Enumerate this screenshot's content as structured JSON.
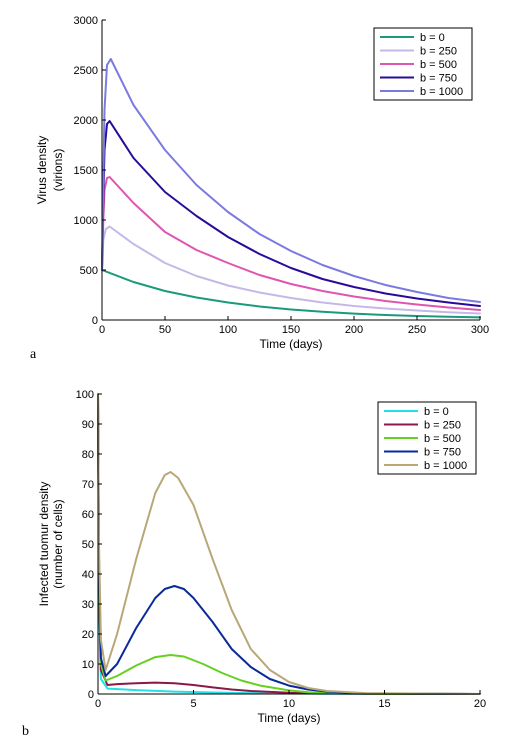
{
  "chart_data": [
    {
      "type": "line",
      "panel_label": "a",
      "xlabel": "Time (days)",
      "ylabel_lines": [
        "Virus density",
        "(virions)"
      ],
      "xlim": [
        0,
        300
      ],
      "ylim": [
        0,
        3000
      ],
      "xticks": [
        0,
        50,
        100,
        150,
        200,
        250,
        300
      ],
      "yticks": [
        0,
        500,
        1000,
        1500,
        2000,
        2500,
        3000
      ],
      "grid": false,
      "legend_position": "top-right",
      "series": [
        {
          "name": "b = 0",
          "color": "#1a9a7a",
          "x": [
            0,
            25,
            50,
            75,
            100,
            125,
            150,
            175,
            200,
            225,
            250,
            275,
            300
          ],
          "y": [
            500,
            380,
            290,
            225,
            175,
            135,
            105,
            82,
            64,
            50,
            40,
            32,
            26
          ]
        },
        {
          "name": "b = 250",
          "color": "#c5b8e8",
          "x": [
            0,
            1,
            3,
            6,
            25,
            50,
            75,
            100,
            125,
            150,
            175,
            200,
            225,
            250,
            275,
            300
          ],
          "y": [
            500,
            800,
            910,
            935,
            760,
            570,
            440,
            345,
            275,
            220,
            175,
            140,
            115,
            95,
            78,
            65
          ]
        },
        {
          "name": "b = 500",
          "color": "#e055b0",
          "x": [
            0,
            1,
            2,
            4,
            6,
            25,
            50,
            75,
            100,
            125,
            150,
            175,
            200,
            225,
            250,
            275,
            300
          ],
          "y": [
            500,
            1000,
            1300,
            1420,
            1430,
            1170,
            880,
            700,
            570,
            450,
            360,
            290,
            235,
            190,
            155,
            125,
            100
          ]
        },
        {
          "name": "b = 750",
          "color": "#2a0a9a",
          "x": [
            0,
            1,
            2,
            4,
            6,
            25,
            50,
            75,
            100,
            125,
            150,
            175,
            200,
            225,
            250,
            275,
            300
          ],
          "y": [
            500,
            1200,
            1700,
            1960,
            1990,
            1620,
            1280,
            1040,
            830,
            660,
            520,
            410,
            330,
            265,
            215,
            175,
            140
          ]
        },
        {
          "name": "b = 1000",
          "color": "#7b7ae0",
          "x": [
            0,
            1,
            2,
            4,
            7,
            25,
            50,
            75,
            100,
            125,
            150,
            175,
            200,
            225,
            250,
            275,
            300
          ],
          "y": [
            500,
            1400,
            2100,
            2550,
            2610,
            2150,
            1700,
            1350,
            1080,
            860,
            690,
            550,
            440,
            350,
            280,
            220,
            180
          ]
        }
      ]
    },
    {
      "type": "line",
      "panel_label": "b",
      "xlabel": "Time (days)",
      "ylabel_lines": [
        "Infected tuomur density",
        "(number of cells)"
      ],
      "xlim": [
        0,
        20
      ],
      "ylim": [
        0,
        100
      ],
      "xticks": [
        0,
        5,
        10,
        15,
        20
      ],
      "yticks": [
        0,
        10,
        20,
        30,
        40,
        50,
        60,
        70,
        80,
        90,
        100
      ],
      "grid": false,
      "legend_position": "top-right",
      "series": [
        {
          "name": "b = 0",
          "color": "#22e0e8",
          "x": [
            0,
            0.05,
            0.15,
            0.5,
            2,
            4,
            6,
            8,
            10,
            12,
            15,
            20
          ],
          "y": [
            100,
            30,
            5,
            1.8,
            1.3,
            0.8,
            0.5,
            0.3,
            0.2,
            0.1,
            0.05,
            0
          ]
        },
        {
          "name": "b = 250",
          "color": "#8c1848",
          "x": [
            0,
            0.05,
            0.15,
            0.5,
            1,
            2,
            3,
            4,
            5,
            6,
            7,
            8,
            10,
            12,
            15,
            20
          ],
          "y": [
            100,
            35,
            8,
            3.0,
            3.3,
            3.6,
            3.8,
            3.6,
            3.0,
            2.2,
            1.5,
            1.0,
            0.4,
            0.2,
            0.05,
            0
          ]
        },
        {
          "name": "b = 500",
          "color": "#66d020",
          "x": [
            0,
            0.05,
            0.15,
            0.4,
            1,
            2,
            3,
            3.8,
            4.5,
            5.5,
            6.5,
            7.5,
            8.5,
            10,
            11,
            12,
            15,
            20
          ],
          "y": [
            100,
            40,
            10,
            4.5,
            6,
            9.5,
            12.3,
            13,
            12.5,
            10,
            7,
            4.5,
            2.8,
            1.2,
            0.6,
            0.3,
            0.05,
            0
          ]
        },
        {
          "name": "b = 750",
          "color": "#0a2a9a",
          "x": [
            0,
            0.05,
            0.15,
            0.4,
            1,
            2,
            3,
            3.5,
            4,
            4.5,
            5,
            6,
            7,
            8,
            9,
            10,
            11,
            12,
            14,
            20
          ],
          "y": [
            100,
            45,
            12,
            6,
            10,
            22,
            32,
            35,
            36,
            35,
            32,
            24,
            15,
            9,
            5,
            2.8,
            1.5,
            0.8,
            0.2,
            0
          ]
        },
        {
          "name": "b = 1000",
          "color": "#b8a878",
          "x": [
            0,
            0.05,
            0.15,
            0.4,
            1,
            2,
            3,
            3.5,
            3.8,
            4.2,
            5,
            6,
            7,
            8,
            9,
            10,
            11,
            12,
            14,
            20
          ],
          "y": [
            100,
            50,
            18,
            8,
            20,
            45,
            67,
            73,
            74,
            72,
            63,
            45,
            28,
            15,
            8,
            4,
            2,
            1,
            0.3,
            0
          ]
        }
      ]
    }
  ]
}
